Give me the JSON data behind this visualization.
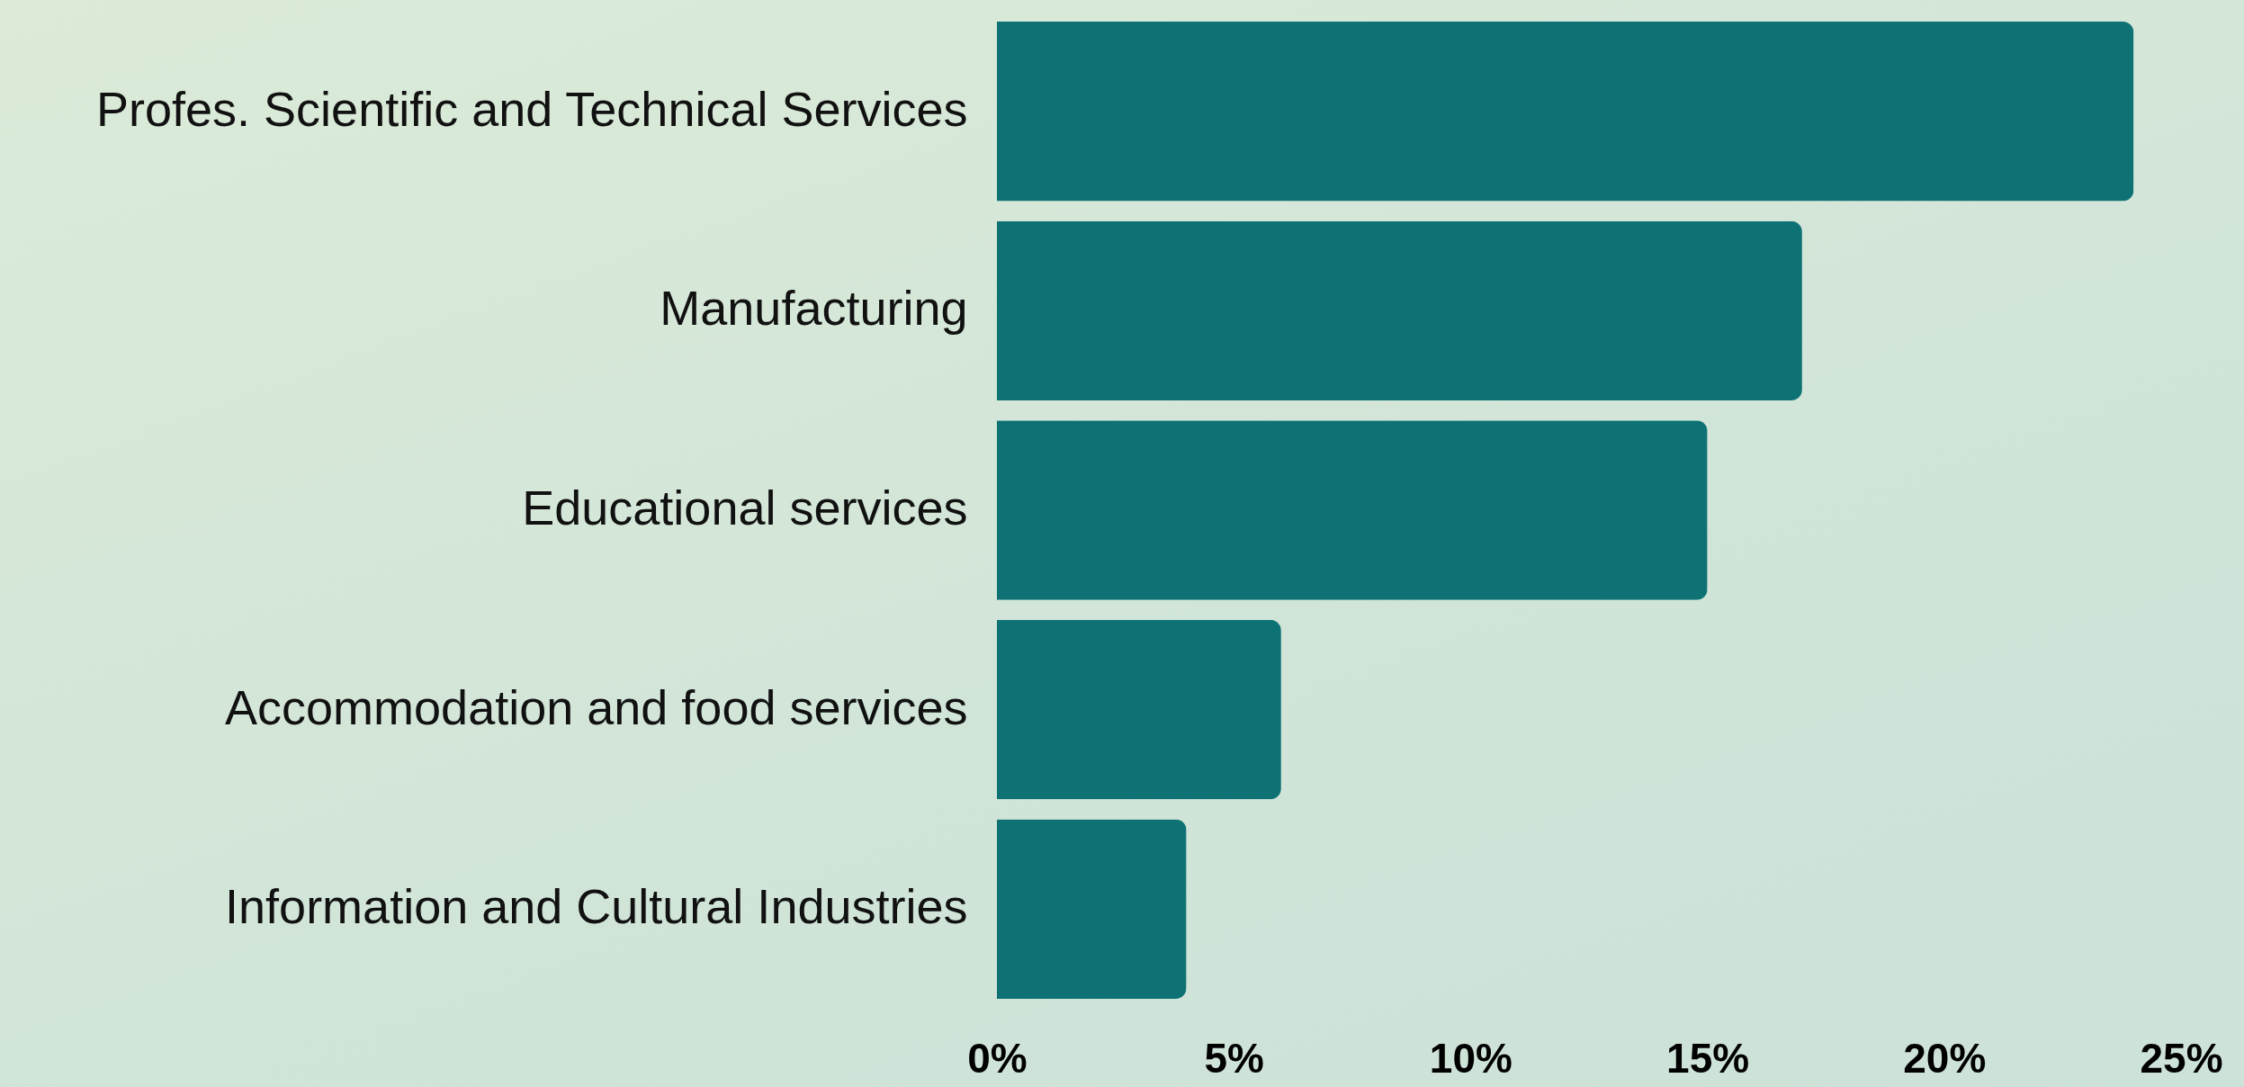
{
  "chart_data": {
    "type": "bar",
    "orientation": "horizontal",
    "categories": [
      "Profes. Scientific and Technical Services",
      "Manufacturing",
      "Educational services",
      "Accommodation and food services",
      "Information and Cultural Industries"
    ],
    "values": [
      24,
      17,
      15,
      6,
      4
    ],
    "color": "#0e7275",
    "xlim": [
      0,
      25
    ],
    "xticks": [
      {
        "value": 0,
        "label": "0%"
      },
      {
        "value": 5,
        "label": "5%"
      },
      {
        "value": 10,
        "label": "10%"
      },
      {
        "value": 15,
        "label": "15%"
      },
      {
        "value": 20,
        "label": "20%"
      },
      {
        "value": 25,
        "label": "25%"
      }
    ],
    "grid": false
  }
}
